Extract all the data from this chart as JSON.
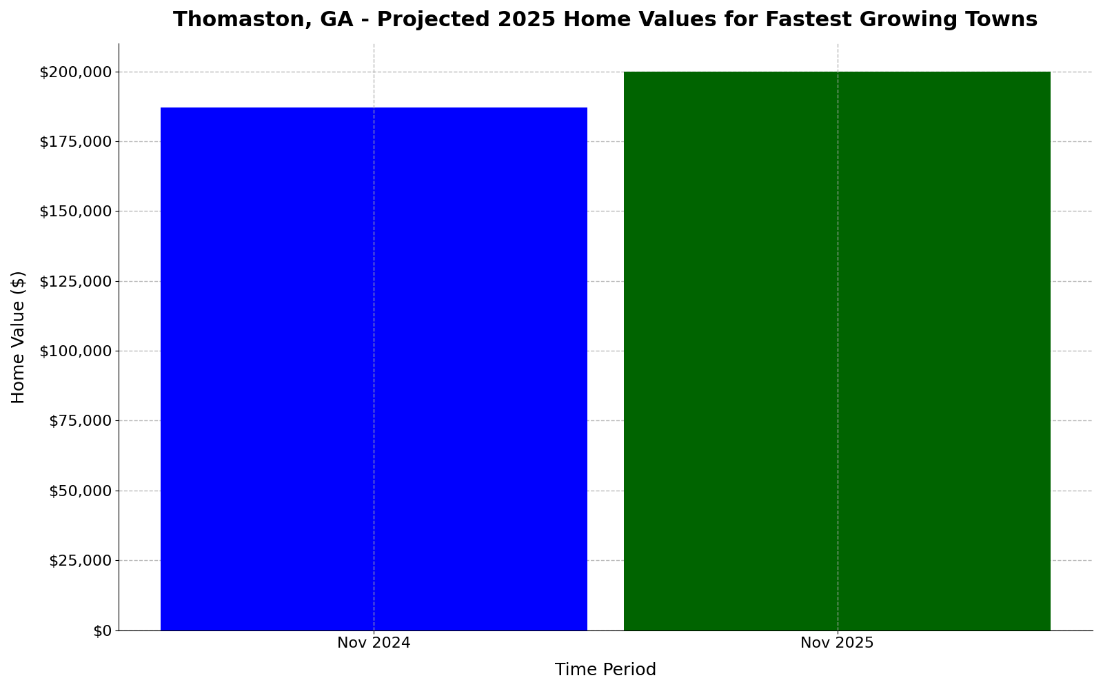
{
  "title": "Thomaston, GA - Projected 2025 Home Values for Fastest Growing Towns",
  "categories": [
    "Nov 2024",
    "Nov 2025"
  ],
  "values": [
    187000,
    200000
  ],
  "bar_colors": [
    "#0000ff",
    "#006400"
  ],
  "xlabel": "Time Period",
  "ylabel": "Home Value ($)",
  "ylim": [
    0,
    210000
  ],
  "yticks": [
    0,
    25000,
    50000,
    75000,
    100000,
    125000,
    150000,
    175000,
    200000
  ],
  "title_fontsize": 22,
  "axis_label_fontsize": 18,
  "tick_fontsize": 16,
  "bar_width": 0.92,
  "xlim": [
    -0.55,
    1.55
  ],
  "grid_color": "#aaaaaa",
  "grid_style": "--",
  "grid_alpha": 0.8,
  "grid_linewidth": 1.0,
  "background_color": "#ffffff"
}
